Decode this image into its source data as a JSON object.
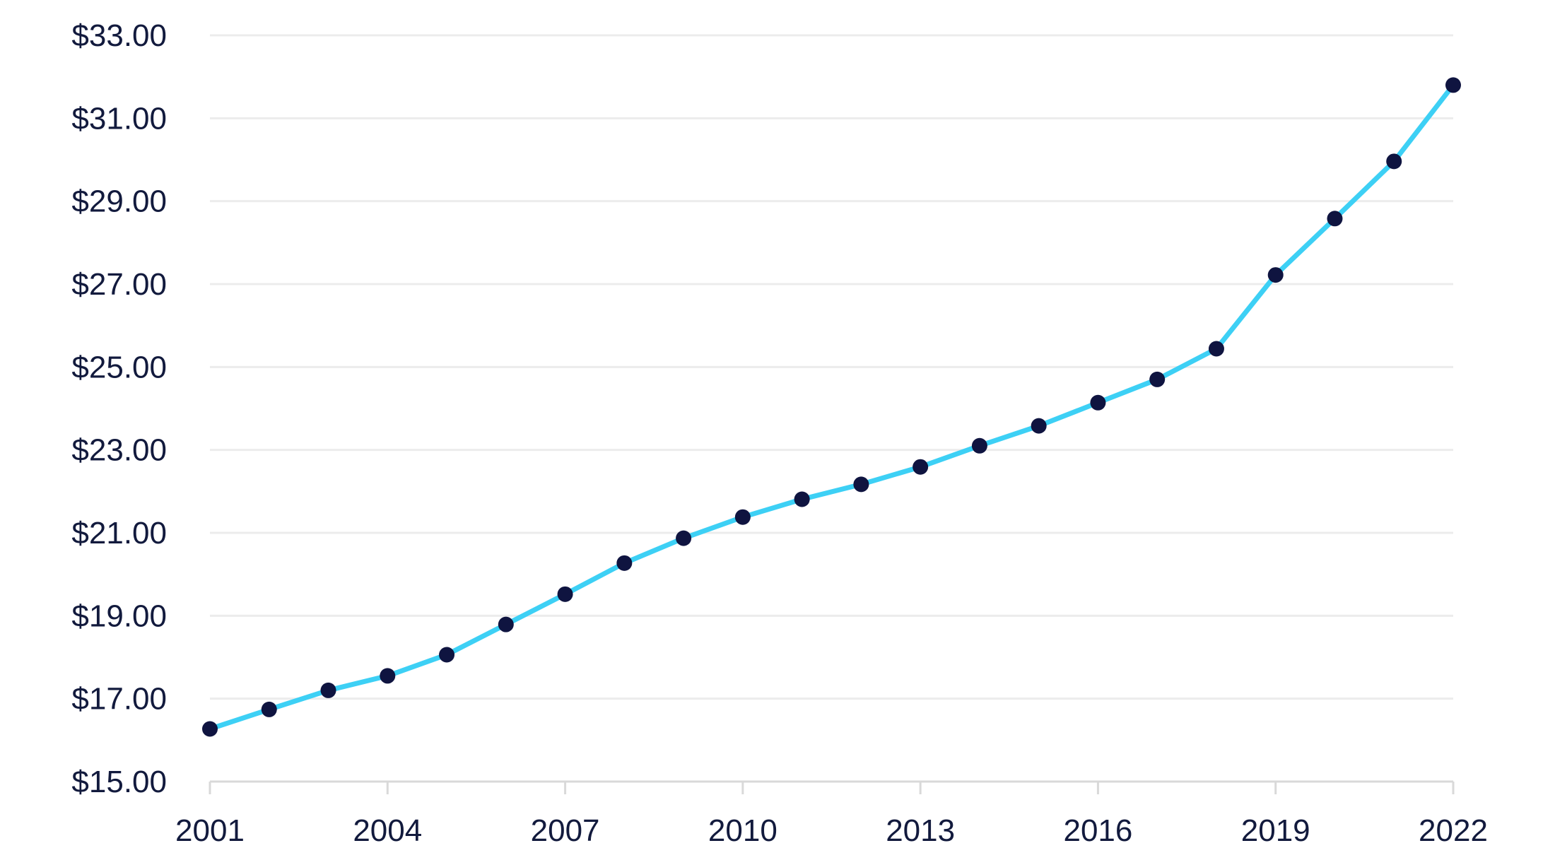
{
  "chart_data": {
    "type": "line",
    "title": "",
    "xlabel": "",
    "ylabel": "",
    "x": [
      2001,
      2002,
      2003,
      2004,
      2005,
      2006,
      2007,
      2008,
      2009,
      2010,
      2011,
      2012,
      2013,
      2014,
      2015,
      2016,
      2017,
      2018,
      2019,
      2020,
      2021,
      2022
    ],
    "series": [
      {
        "values": [
          16.27,
          16.74,
          17.2,
          17.55,
          18.06,
          18.79,
          19.52,
          20.27,
          20.87,
          21.38,
          21.81,
          22.17,
          22.59,
          23.1,
          23.58,
          24.14,
          24.7,
          25.44,
          27.22,
          28.58,
          29.96,
          31.8
        ]
      }
    ],
    "xlim": [
      2001,
      2022
    ],
    "ylim": [
      15,
      33
    ],
    "x_tick_labels": [
      "2001",
      "2004",
      "2007",
      "2010",
      "2013",
      "2016",
      "2019",
      "2022"
    ],
    "y_tick_labels": [
      "$15.00",
      "$17.00",
      "$19.00",
      "$21.00",
      "$23.00",
      "$25.00",
      "$27.00",
      "$29.00",
      "$31.00",
      "$33.00"
    ],
    "grid": true,
    "legend": "none",
    "colors": {
      "line": "#3dd0f5",
      "marker": "#0f1440",
      "text": "#121a3d",
      "grid": "#ececec",
      "axis": "#d9d9d9"
    }
  }
}
